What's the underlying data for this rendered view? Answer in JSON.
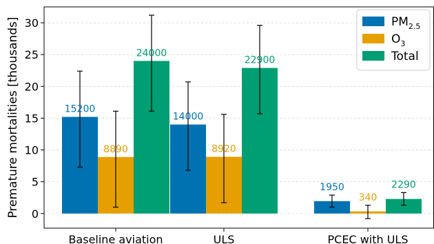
{
  "chart_data": {
    "type": "bar",
    "categories": [
      "Baseline aviation",
      "ULS",
      "PCEC with ULS"
    ],
    "ylabel": "Premature mortalities [thousands]",
    "ylim": [
      -2.3,
      32.5
    ],
    "yticks": [
      0,
      5,
      10,
      15,
      20,
      25,
      30
    ],
    "grid": "horizontal dashed",
    "legend_position": "top-right",
    "series": [
      {
        "name": "PM",
        "name_subscript": "2.5",
        "color": "#0072b2",
        "values": [
          15.2,
          14.0,
          1.95
        ],
        "labels": [
          "15200",
          "14000",
          "1950"
        ],
        "error_low": [
          7.3,
          6.8,
          1.0
        ],
        "error_high": [
          22.4,
          20.7,
          2.9
        ]
      },
      {
        "name": "O",
        "name_subscript": "3",
        "color": "#e69f00",
        "values": [
          8.89,
          8.92,
          0.34
        ],
        "labels": [
          "8890",
          "8920",
          "340"
        ],
        "error_low": [
          1.0,
          1.7,
          -0.8
        ],
        "error_high": [
          16.1,
          15.6,
          1.3
        ]
      },
      {
        "name": "Total",
        "name_subscript": "",
        "color": "#009e73",
        "values": [
          24.0,
          22.9,
          2.29
        ],
        "labels": [
          "24000",
          "22900",
          "2290"
        ],
        "error_low": [
          16.1,
          15.7,
          1.3
        ],
        "error_high": [
          31.2,
          29.6,
          3.3
        ]
      }
    ]
  }
}
